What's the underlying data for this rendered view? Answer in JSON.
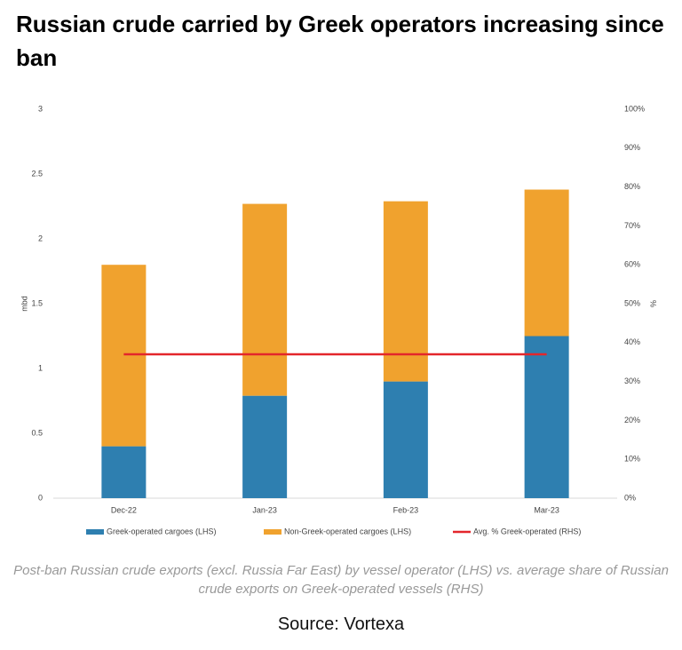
{
  "chart_data": {
    "type": "bar",
    "stacked": true,
    "title": "Russian crude carried by Greek operators increasing since ban",
    "caption": "Post-ban Russian crude exports (excl. Russia Far East) by vessel operator  (LHS) vs. average share of Russian crude exports on Greek-operated vessels  (RHS)",
    "source": "Source: Vortexa",
    "y_label": "mbd",
    "y2_label": "%",
    "categories": [
      "Dec-22",
      "Jan-23",
      "Feb-23",
      "Mar-23"
    ],
    "series": [
      {
        "name": "Greek-operated cargoes (LHS)",
        "color": "#2e7fb0",
        "values": [
          0.4,
          0.79,
          0.9,
          1.25
        ]
      },
      {
        "name": "Non-Greek-operated cargoes (LHS)",
        "color": "#f0a22e",
        "values": [
          1.4,
          1.48,
          1.39,
          1.13
        ]
      },
      {
        "name": "Avg. % Greek-operated (RHS)",
        "color": "#e3262b",
        "type": "line",
        "axis": "y2",
        "values": [
          37,
          37,
          37,
          37
        ]
      }
    ],
    "ylim": [
      0,
      3
    ],
    "yticks": [
      0,
      0.5,
      1,
      1.5,
      2,
      2.5,
      3
    ],
    "y2lim": [
      0,
      100
    ],
    "y2ticks": [
      {
        "value": 0,
        "label": "0%"
      },
      {
        "value": 10,
        "label": "10%"
      },
      {
        "value": 20,
        "label": "20%"
      },
      {
        "value": 30,
        "label": "30%"
      },
      {
        "value": 40,
        "label": "40%"
      },
      {
        "value": 50,
        "label": "50%"
      },
      {
        "value": 60,
        "label": "60%"
      },
      {
        "value": 70,
        "label": "70%"
      },
      {
        "value": 80,
        "label": "80%"
      },
      {
        "value": 90,
        "label": "90%"
      },
      {
        "value": 100,
        "label": "100%"
      }
    ]
  }
}
